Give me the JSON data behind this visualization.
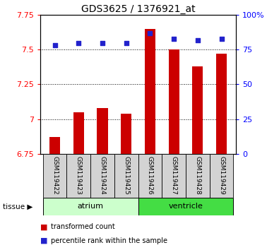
{
  "title": "GDS3625 / 1376921_at",
  "samples": [
    "GSM119422",
    "GSM119423",
    "GSM119424",
    "GSM119425",
    "GSM119426",
    "GSM119427",
    "GSM119428",
    "GSM119429"
  ],
  "bar_values": [
    6.87,
    7.05,
    7.08,
    7.04,
    7.65,
    7.5,
    7.38,
    7.47
  ],
  "dot_values": [
    78,
    80,
    80,
    80,
    87,
    83,
    82,
    83
  ],
  "ylim_left": [
    6.75,
    7.75
  ],
  "ylim_right": [
    0,
    100
  ],
  "yticks_left": [
    6.75,
    7.0,
    7.25,
    7.5,
    7.75
  ],
  "ytick_labels_left": [
    "6.75",
    "7",
    "7.25",
    "7.5",
    "7.75"
  ],
  "yticks_right": [
    0,
    25,
    50,
    75,
    100
  ],
  "ytick_labels_right": [
    "0",
    "25",
    "50",
    "75",
    "100%"
  ],
  "bar_color": "#cc0000",
  "dot_color": "#2222cc",
  "bar_bottom": 6.75,
  "bar_width": 0.45,
  "groups": [
    {
      "label": "atrium",
      "start": 0,
      "end": 4,
      "color": "#ccffcc"
    },
    {
      "label": "ventricle",
      "start": 4,
      "end": 8,
      "color": "#44dd44"
    }
  ],
  "legend_items": [
    {
      "label": "transformed count",
      "color": "#cc0000"
    },
    {
      "label": "percentile rank within the sample",
      "color": "#2222cc"
    }
  ]
}
